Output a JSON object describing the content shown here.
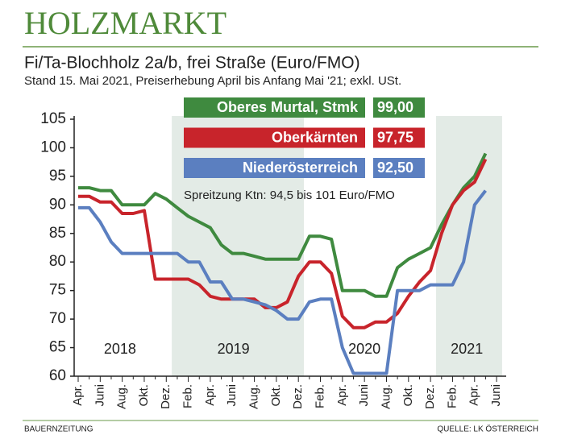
{
  "header": {
    "title": "HOLZMARKT"
  },
  "chart_data": {
    "type": "line",
    "title": "Fi/Ta-Blochholz 2a/b, frei Straße (Euro/FMO)",
    "subtitle": "Stand 15. Mai 2021, Preiserhebung April bis Anfang Mai '21; exkl. USt.",
    "annotation": "Spreitzung Ktn: 94,5 bis 101 Euro/FMO",
    "year_labels": [
      "2018",
      "2019",
      "2020",
      "2021"
    ],
    "categories": [
      "Apr.",
      null,
      "Juni",
      null,
      "Aug.",
      null,
      "Okt.",
      null,
      "Dez.",
      null,
      "Feb.",
      null,
      "Apr.",
      null,
      "Juni",
      null,
      "Aug.",
      null,
      "Okt.",
      null,
      "Dez.",
      null,
      "Feb.",
      null,
      "Apr.",
      null,
      "Juni",
      null,
      "Aug.",
      null,
      "Okt.",
      null,
      "Dez.",
      null,
      "Feb.",
      null,
      "Apr.",
      null,
      "Juni"
    ],
    "series": [
      {
        "name": "Oberes Murtal, Stmk",
        "legend_value": "99,00",
        "color": "#3f8a3f",
        "values": [
          93,
          93,
          92.5,
          92.5,
          90,
          90,
          90,
          92,
          91,
          89.5,
          88,
          87,
          86,
          83,
          81.5,
          81.5,
          81,
          80.5,
          80.5,
          80.5,
          80.5,
          84.5,
          84.5,
          84,
          75,
          75,
          75,
          74,
          74,
          79,
          80.5,
          81.5,
          82.5,
          86.5,
          90,
          93,
          95,
          99,
          null
        ]
      },
      {
        "name": "Oberkärnten",
        "legend_value": "97,75",
        "color": "#c8242b",
        "values": [
          91.5,
          91.5,
          90.5,
          90.5,
          88.5,
          88.5,
          89,
          77,
          77,
          77,
          77,
          76,
          74,
          73.5,
          73.5,
          73.5,
          73.5,
          72,
          72,
          73,
          77.5,
          80,
          80,
          78,
          70.5,
          68.5,
          68.5,
          69.5,
          69.5,
          71,
          74,
          76.5,
          78.5,
          85,
          90,
          92.5,
          94,
          98,
          null
        ]
      },
      {
        "name": "Niederösterreich",
        "legend_value": "92,50",
        "color": "#5b7fc0",
        "values": [
          89.5,
          89.5,
          87,
          83.5,
          81.5,
          81.5,
          81.5,
          81.5,
          81.5,
          81.5,
          80,
          80,
          76.5,
          76.5,
          73.5,
          73.5,
          73,
          72.5,
          71.5,
          70,
          70,
          73,
          73.5,
          73.5,
          65,
          60.5,
          60.5,
          60.5,
          60.5,
          75,
          75,
          75,
          76,
          76,
          76,
          80,
          90,
          92.5,
          null
        ]
      }
    ],
    "ylim": [
      60,
      105
    ],
    "yticks": [
      60,
      65,
      70,
      75,
      80,
      85,
      90,
      95,
      100,
      105
    ],
    "grid": false
  },
  "footer": {
    "left": "BAUERNZEITUNG",
    "right": "QUELLE: LK ÖSTERREICH"
  }
}
